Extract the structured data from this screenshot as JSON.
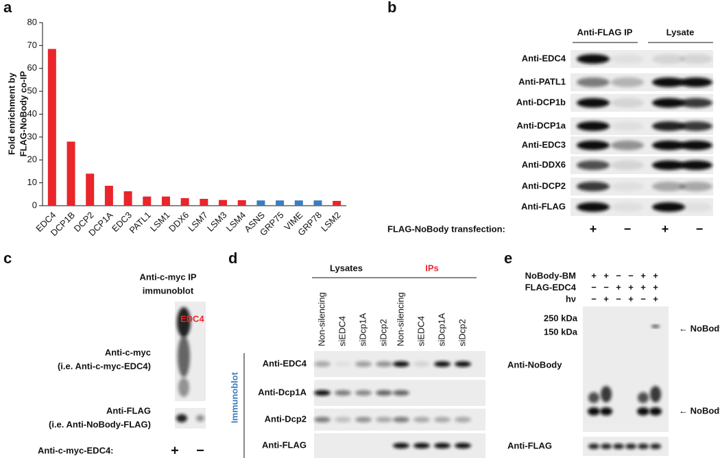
{
  "chart_data": {
    "type": "bar",
    "panel": "a",
    "y_label": [
      "Fold enrichment by",
      "FLAG-NoBody co-IP"
    ],
    "categories": [
      "EDC4",
      "DCP1B",
      "DCP2",
      "DCP1A",
      "EDC3",
      "PATL1",
      "LSM1",
      "DDX6",
      "LSM7",
      "LSM3",
      "LSM4",
      "ASNS",
      "GRP75",
      "VIME",
      "GRP78",
      "LSM2"
    ],
    "values": [
      68.5,
      28,
      14,
      8.7,
      6.3,
      4,
      4,
      3.3,
      3,
      2.5,
      2.4,
      2.3,
      2.3,
      2.3,
      2.3,
      2.1
    ],
    "colors": [
      "#e8262b",
      "#e8262b",
      "#e8262b",
      "#e8262b",
      "#e8262b",
      "#e8262b",
      "#e8262b",
      "#e8262b",
      "#e8262b",
      "#e8262b",
      "#e8262b",
      "#3a7dc0",
      "#3a7dc0",
      "#3a7dc0",
      "#3a7dc0",
      "#e8262b"
    ],
    "ylim": [
      0,
      80
    ],
    "yticks": [
      0,
      10,
      20,
      30,
      40,
      50,
      60,
      70,
      80
    ]
  },
  "panel_b": {
    "label": "b",
    "headers": [
      "Anti-FLAG IP",
      "Lysate"
    ],
    "rows": [
      "Anti-EDC4",
      "Anti-PATL1",
      "Anti-DCP1b",
      "Anti-DCP1a",
      "Anti-EDC3",
      "Anti-DDX6",
      "Anti-DCP2",
      "Anti-FLAG"
    ],
    "condition": "FLAG-NoBody transfection:",
    "signs": [
      "+",
      "−",
      "+",
      "−"
    ]
  },
  "panel_c": {
    "label": "c",
    "header": [
      "Anti-c-myc IP",
      "immunoblot"
    ],
    "band": "EDC4",
    "rows": [
      [
        "Anti-c-myc",
        "(i.e. Anti-c-myc-EDC4)"
      ],
      [
        "Anti-FLAG",
        "(i.e. Anti-NoBody-FLAG)"
      ]
    ],
    "condition": "Anti-c-myc-EDC4:",
    "signs": [
      "+",
      "−"
    ]
  },
  "panel_d": {
    "label": "d",
    "groups": [
      "Lysates",
      "IPs"
    ],
    "lanes": [
      "Non-silencing",
      "siEDC4",
      "siDcp1A",
      "siDcp2",
      "Non-silencing",
      "siEDC4",
      "siDcp1A",
      "siDcp2"
    ],
    "side": "Immunoblot",
    "rows": [
      "Anti-EDC4",
      "Anti-Dcp1A",
      "Anti-Dcp2",
      "Anti-FLAG"
    ]
  },
  "panel_e": {
    "label": "e",
    "conditions": [
      {
        "name": "NoBody-BM",
        "signs": [
          "+",
          "+",
          "−",
          "−",
          "+",
          "+"
        ]
      },
      {
        "name": "FLAG-EDC4",
        "signs": [
          "−",
          "−",
          "+",
          "+",
          "+",
          "+"
        ]
      },
      {
        "name": "hν",
        "signs": [
          "−",
          "+",
          "−",
          "+",
          "−",
          "+"
        ]
      }
    ],
    "markers": [
      "250 kDa",
      "150 kDa"
    ],
    "arrows": [
      "← NoBody",
      "← NoBody"
    ],
    "rows": [
      "Anti-NoBody",
      "Anti-FLAG"
    ]
  }
}
